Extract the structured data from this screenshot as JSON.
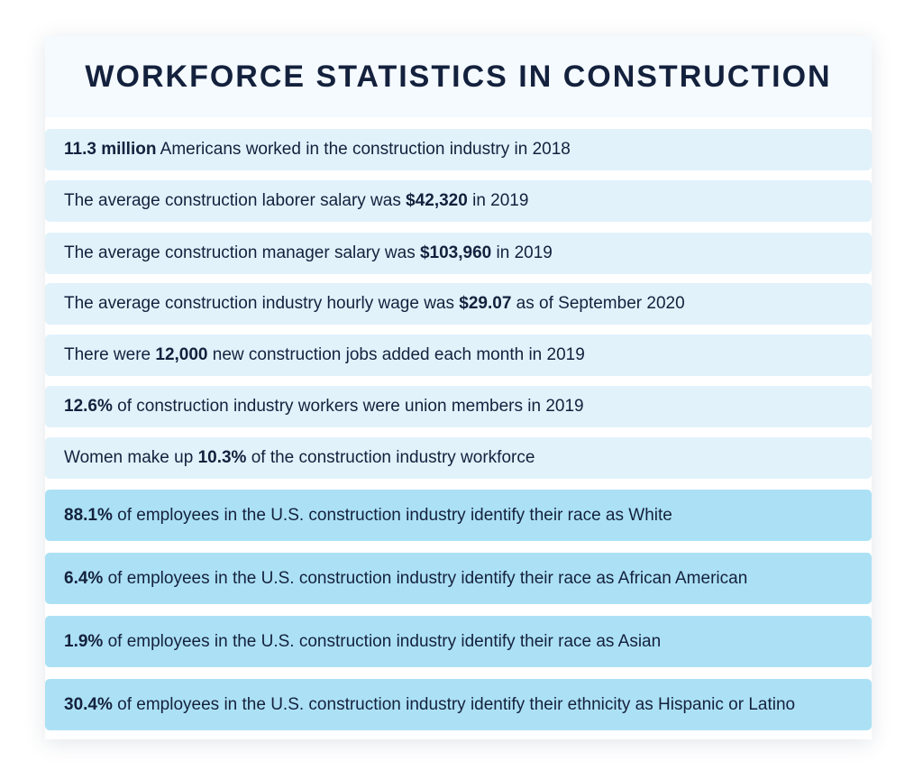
{
  "title": "WORKFORCE STATISTICS IN CONSTRUCTION",
  "colors": {
    "title_text": "#14213d",
    "title_background": "#f5faff",
    "light_row": "#e1f2fb",
    "blue_row": "#ace1f5"
  },
  "stats": [
    {
      "pre": "",
      "bold": "11.3 million",
      "post": " Americans worked in the construction industry in 2018"
    },
    {
      "pre": "The average construction laborer salary was ",
      "bold": "$42,320",
      "post": " in 2019"
    },
    {
      "pre": "The average construction manager salary was ",
      "bold": "$103,960",
      "post": " in 2019"
    },
    {
      "pre": "The average construction industry hourly wage was ",
      "bold": "$29.07",
      "post": " as of September 2020"
    },
    {
      "pre": "There were ",
      "bold": "12,000",
      "post": " new construction jobs added each month in 2019"
    },
    {
      "pre": "",
      "bold": "12.6%",
      "post": " of construction industry workers were union members in 2019"
    },
    {
      "pre": "Women make up ",
      "bold": "10.3%",
      "post": " of the construction industry workforce"
    },
    {
      "pre": "",
      "bold": "88.1%",
      "post": " of employees in the U.S. construction industry identify their race as White"
    },
    {
      "pre": "",
      "bold": "6.4%",
      "post": " of employees in the U.S. construction industry identify their race as African American"
    },
    {
      "pre": "",
      "bold": "1.9%",
      "post": " of employees in the U.S. construction industry identify their race as Asian"
    },
    {
      "pre": "",
      "bold": "30.4%",
      "post": " of employees in the U.S. construction industry identify their ethnicity as Hispanic or Latino"
    }
  ]
}
